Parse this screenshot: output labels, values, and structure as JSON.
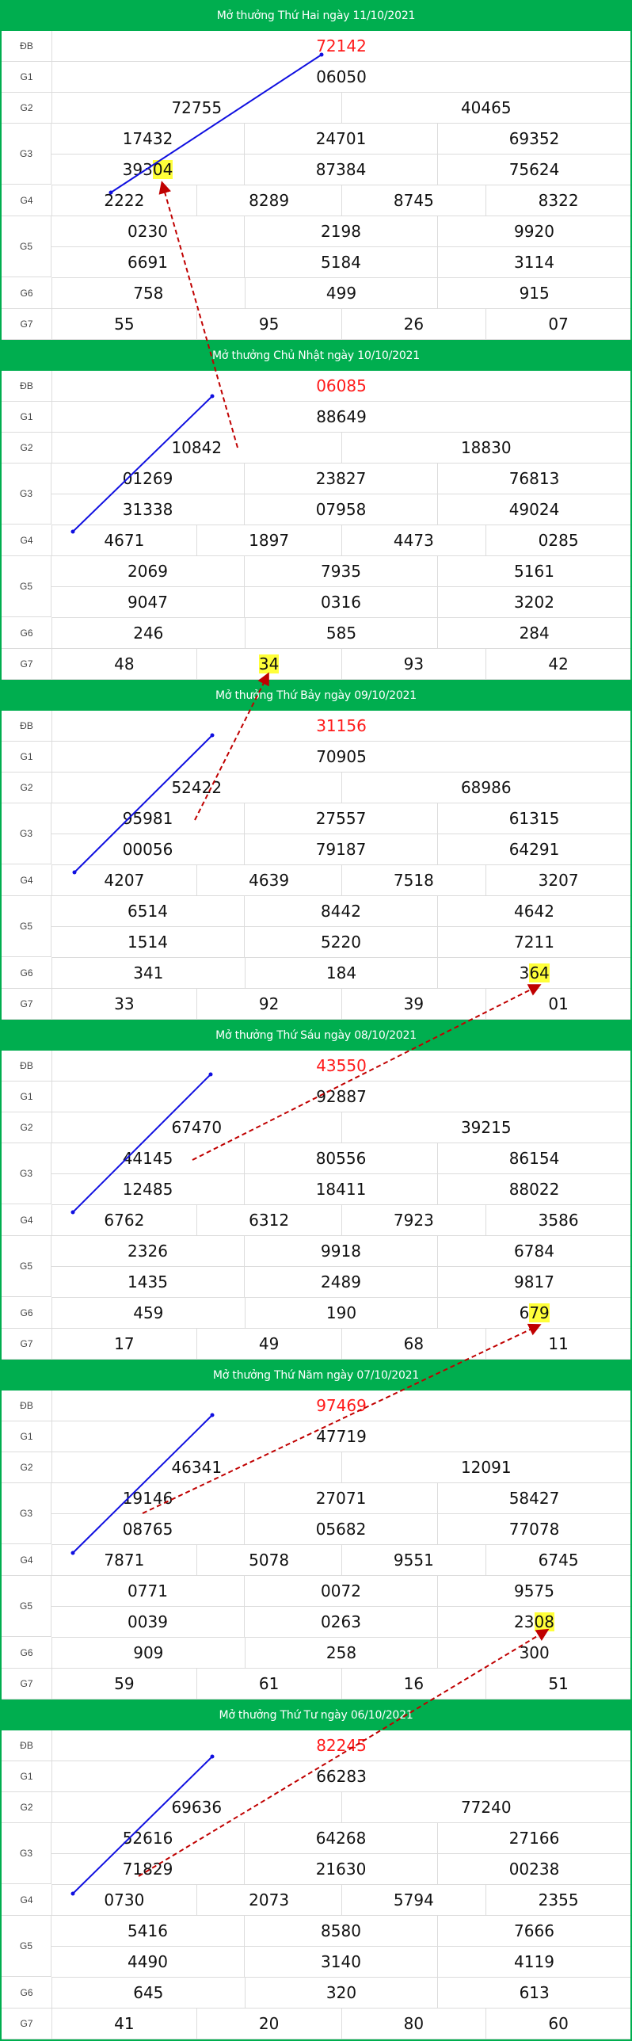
{
  "colors": {
    "header": "#00ae4f",
    "special": "#ff1a1a",
    "highlight": "#ffff3a",
    "blue_line": "#1010e0",
    "red_line": "#c00000"
  },
  "labels": {
    "db": "ĐB",
    "g1": "G1",
    "g2": "G2",
    "g3": "G3",
    "g4": "G4",
    "g5": "G5",
    "g6": "G6",
    "g7": "G7"
  },
  "draws": [
    {
      "title": "Mở thưởng Thứ Hai ngày 11/10/2021",
      "db": "72142",
      "g1": "06050",
      "g2": [
        "72755",
        "40465"
      ],
      "g3a": [
        "17432",
        "39304",
        "24701"
      ],
      "g3": [
        [
          "17432",
          "24701",
          "69352"
        ],
        [
          "39304",
          "87384",
          "75624"
        ]
      ],
      "g4": [
        "2222",
        "8289",
        "8745",
        "8322"
      ],
      "g5": [
        [
          "0230",
          "2198",
          "9920"
        ],
        [
          "6691",
          "5184",
          "3114"
        ]
      ],
      "g6": [
        "758",
        "499",
        "915"
      ],
      "g7": [
        "55",
        "95",
        "26",
        "07"
      ],
      "highlight": {
        "cell": "g3.1.0",
        "text_pre": "393",
        "text_hl": "04",
        "text_post": ""
      }
    },
    {
      "title": "Mở thưởng Chủ Nhật ngày 10/10/2021",
      "db": "06085",
      "g1": "88649",
      "g2": [
        "10842",
        "18830"
      ],
      "g3": [
        [
          "01269",
          "23827",
          "76813"
        ],
        [
          "31338",
          "07958",
          "49024"
        ]
      ],
      "g4": [
        "4671",
        "1897",
        "4473",
        "0285"
      ],
      "g5": [
        [
          "2069",
          "7935",
          "5161"
        ],
        [
          "9047",
          "0316",
          "3202"
        ]
      ],
      "g6": [
        "246",
        "585",
        "284"
      ],
      "g7": [
        "48",
        "34",
        "93",
        "42"
      ],
      "highlight": {
        "cell": "g7.1",
        "text_pre": "",
        "text_hl": "34",
        "text_post": ""
      }
    },
    {
      "title": "Mở thưởng Thứ Bảy ngày 09/10/2021",
      "db": "31156",
      "g1": "70905",
      "g2": [
        "52422",
        "68986"
      ],
      "g3": [
        [
          "95981",
          "27557",
          "61315"
        ],
        [
          "00056",
          "79187",
          "64291"
        ]
      ],
      "g4": [
        "4207",
        "4639",
        "7518",
        "3207"
      ],
      "g5": [
        [
          "6514",
          "8442",
          "4642"
        ],
        [
          "1514",
          "5220",
          "7211"
        ]
      ],
      "g6": [
        "341",
        "184",
        "364"
      ],
      "g7": [
        "33",
        "92",
        "39",
        "01"
      ],
      "highlight": {
        "cell": "g6.2",
        "text_pre": "3",
        "text_hl": "64",
        "text_post": ""
      }
    },
    {
      "title": "Mở thưởng Thứ Sáu ngày 08/10/2021",
      "db": "43550",
      "g1": "92887",
      "g2": [
        "67470",
        "39215"
      ],
      "g3": [
        [
          "44145",
          "80556",
          "86154"
        ],
        [
          "12485",
          "18411",
          "88022"
        ]
      ],
      "g4": [
        "6762",
        "6312",
        "7923",
        "3586"
      ],
      "g5": [
        [
          "2326",
          "9918",
          "6784"
        ],
        [
          "1435",
          "2489",
          "9817"
        ]
      ],
      "g6": [
        "459",
        "190",
        "679"
      ],
      "g7": [
        "17",
        "49",
        "68",
        "11"
      ],
      "highlight": {
        "cell": "g6.2",
        "text_pre": "6",
        "text_hl": "79",
        "text_post": ""
      }
    },
    {
      "title": "Mở thưởng Thứ Năm ngày 07/10/2021",
      "db": "97469",
      "g1": "47719",
      "g2": [
        "46341",
        "12091"
      ],
      "g3": [
        [
          "19146",
          "27071",
          "58427"
        ],
        [
          "08765",
          "05682",
          "77078"
        ]
      ],
      "g4": [
        "7871",
        "5078",
        "9551",
        "6745"
      ],
      "g5": [
        [
          "0771",
          "0072",
          "9575"
        ],
        [
          "0039",
          "0263",
          "2308"
        ]
      ],
      "g6": [
        "909",
        "258",
        "300"
      ],
      "g7": [
        "59",
        "61",
        "16",
        "51"
      ],
      "highlight": {
        "cell": "g5.1.2",
        "text_pre": "23",
        "text_hl": "08",
        "text_post": ""
      }
    },
    {
      "title": "Mở thưởng Thứ Tư ngày 06/10/2021",
      "db": "82245",
      "g1": "66283",
      "g2": [
        "69636",
        "77240"
      ],
      "g3": [
        [
          "52616",
          "64268",
          "27166"
        ],
        [
          "71829",
          "21630",
          "00238"
        ]
      ],
      "g4": [
        "0730",
        "2073",
        "5794",
        "2355"
      ],
      "g5": [
        [
          "5416",
          "8580",
          "7666"
        ],
        [
          "4490",
          "3140",
          "4119"
        ]
      ],
      "g6": [
        "645",
        "320",
        "613"
      ],
      "g7": [
        "41",
        "20",
        "80",
        "60"
      ],
      "highlight": null
    }
  ],
  "overlay": {
    "blue_lines": [
      [
        140,
        243,
        406,
        69
      ],
      [
        92,
        671,
        268,
        500
      ],
      [
        94,
        1101,
        268,
        928
      ],
      [
        92,
        1530,
        266,
        1356
      ],
      [
        92,
        1960,
        268,
        1786
      ],
      [
        92,
        2390,
        268,
        2217
      ]
    ],
    "red_dashed_arrows": [
      [
        300,
        565,
        205,
        232
      ],
      [
        246,
        1035,
        338,
        852
      ],
      [
        243,
        1464,
        680,
        1244
      ],
      [
        180,
        1910,
        680,
        1673
      ],
      [
        175,
        2368,
        690,
        2058
      ]
    ]
  }
}
